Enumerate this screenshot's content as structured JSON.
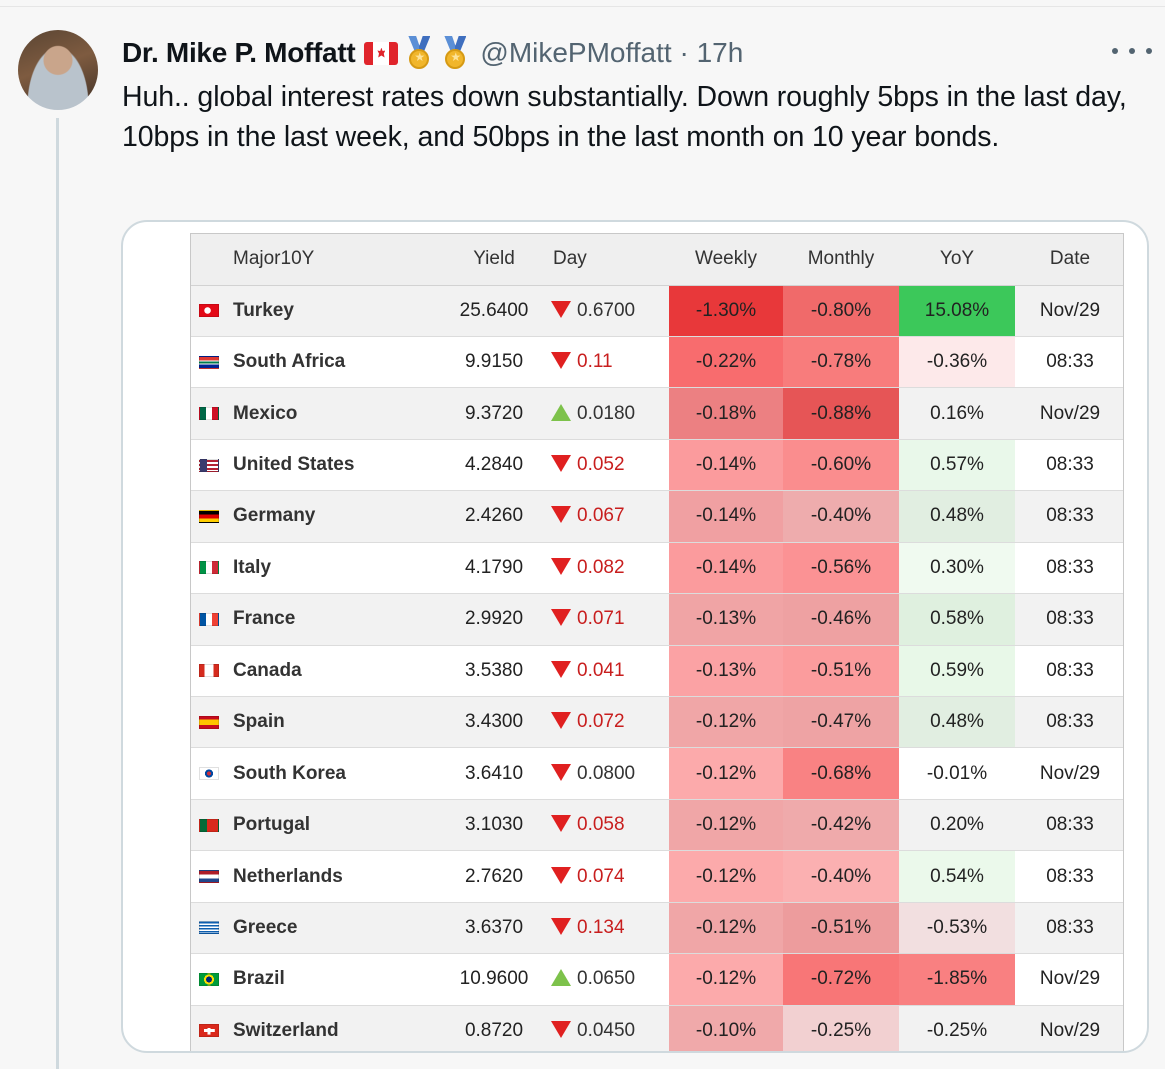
{
  "author": {
    "display_name": "Dr. Mike P. Moffatt",
    "handle": "@MikePMoffatt",
    "separator": "·",
    "time": "17h",
    "badges": [
      "canada-flag-emoji",
      "medal-emoji",
      "medal-emoji"
    ]
  },
  "tweet": {
    "text": "Huh.. global interest rates down substantially. Down roughly 5bps in the last day, 10bps in the last week, and 50bps in the last month on 10 year bonds."
  },
  "table": {
    "headers": {
      "name": "Major10Y",
      "yield": "Yield",
      "day": "Day",
      "weekly": "Weekly",
      "monthly": "Monthly",
      "yoy": "YoY",
      "date": "Date"
    },
    "rows": [
      {
        "flag": "turkey-flag-icon",
        "name": "Turkey",
        "yield": "25.6400",
        "dir": "down",
        "day": "0.6700",
        "day_red": false,
        "weekly": "-1.30%",
        "monthly": "-0.80%",
        "yoy": "15.08%",
        "date": "Nov/29",
        "w_color": "#e8383a",
        "m_color": "#f06a6a",
        "y_color": "#3cc85a"
      },
      {
        "flag": "south-africa-flag-icon",
        "name": "South Africa",
        "yield": "9.9150",
        "dir": "down",
        "day": "0.11",
        "day_red": true,
        "weekly": "-0.22%",
        "monthly": "-0.78%",
        "yoy": "-0.36%",
        "date": "08:33",
        "w_color": "#f86c6e",
        "m_color": "#f87c7c",
        "y_color": "#fde9ea"
      },
      {
        "flag": "mexico-flag-icon",
        "name": "Mexico",
        "yield": "9.3720",
        "dir": "up",
        "day": "0.0180",
        "day_red": false,
        "weekly": "-0.18%",
        "monthly": "-0.88%",
        "yoy": "0.16%",
        "date": "Nov/29",
        "w_color": "#ec8082",
        "m_color": "#e65556",
        "y_color": "#f2f2f2"
      },
      {
        "flag": "us-flag-icon",
        "name": "United States",
        "yield": "4.2840",
        "dir": "down",
        "day": "0.052",
        "day_red": true,
        "weekly": "-0.14%",
        "monthly": "-0.60%",
        "yoy": "0.57%",
        "date": "08:33",
        "w_color": "#fb9b9d",
        "m_color": "#fa8d8e",
        "y_color": "#e9f8ea"
      },
      {
        "flag": "germany-flag-icon",
        "name": "Germany",
        "yield": "2.4260",
        "dir": "down",
        "day": "0.067",
        "day_red": true,
        "weekly": "-0.14%",
        "monthly": "-0.40%",
        "yoy": "0.48%",
        "date": "08:33",
        "w_color": "#f0a0a2",
        "m_color": "#eeacad",
        "y_color": "#e1eee1"
      },
      {
        "flag": "italy-flag-icon",
        "name": "Italy",
        "yield": "4.1790",
        "dir": "down",
        "day": "0.082",
        "day_red": true,
        "weekly": "-0.14%",
        "monthly": "-0.56%",
        "yoy": "0.30%",
        "date": "08:33",
        "w_color": "#fb9b9d",
        "m_color": "#fb9294",
        "y_color": "#f0faf0"
      },
      {
        "flag": "france-flag-icon",
        "name": "France",
        "yield": "2.9920",
        "dir": "down",
        "day": "0.071",
        "day_red": true,
        "weekly": "-0.13%",
        "monthly": "-0.46%",
        "yoy": "0.58%",
        "date": "08:33",
        "w_color": "#f0a4a5",
        "m_color": "#eea1a2",
        "y_color": "#dff0df"
      },
      {
        "flag": "canada-flag-icon",
        "name": "Canada",
        "yield": "3.5380",
        "dir": "down",
        "day": "0.041",
        "day_red": true,
        "weekly": "-0.13%",
        "monthly": "-0.51%",
        "yoy": "0.59%",
        "date": "08:33",
        "w_color": "#fba2a4",
        "m_color": "#fb9c9d",
        "y_color": "#e8f8e8"
      },
      {
        "flag": "spain-flag-icon",
        "name": "Spain",
        "yield": "3.4300",
        "dir": "down",
        "day": "0.072",
        "day_red": true,
        "weekly": "-0.12%",
        "monthly": "-0.47%",
        "yoy": "0.48%",
        "date": "08:33",
        "w_color": "#f0a6a7",
        "m_color": "#eea3a4",
        "y_color": "#e1eee1"
      },
      {
        "flag": "south-korea-flag-icon",
        "name": "South Korea",
        "yield": "3.6410",
        "dir": "down",
        "day": "0.0800",
        "day_red": false,
        "weekly": "-0.12%",
        "monthly": "-0.68%",
        "yoy": "-0.01%",
        "date": "Nov/29",
        "w_color": "#fcaaab",
        "m_color": "#f98283",
        "y_color": "#ffffff"
      },
      {
        "flag": "portugal-flag-icon",
        "name": "Portugal",
        "yield": "3.1030",
        "dir": "down",
        "day": "0.058",
        "day_red": true,
        "weekly": "-0.12%",
        "monthly": "-0.42%",
        "yoy": "0.20%",
        "date": "08:33",
        "w_color": "#f0a6a7",
        "m_color": "#efaaab",
        "y_color": "#f2f2f2"
      },
      {
        "flag": "netherlands-flag-icon",
        "name": "Netherlands",
        "yield": "2.7620",
        "dir": "down",
        "day": "0.074",
        "day_red": true,
        "weekly": "-0.12%",
        "monthly": "-0.40%",
        "yoy": "0.54%",
        "date": "08:33",
        "w_color": "#fcaaab",
        "m_color": "#fbb0b1",
        "y_color": "#ebf9eb"
      },
      {
        "flag": "greece-flag-icon",
        "name": "Greece",
        "yield": "3.6370",
        "dir": "down",
        "day": "0.134",
        "day_red": true,
        "weekly": "-0.12%",
        "monthly": "-0.51%",
        "yoy": "-0.53%",
        "date": "08:33",
        "w_color": "#f0a6a7",
        "m_color": "#ed9c9d",
        "y_color": "#f2dfe0"
      },
      {
        "flag": "brazil-flag-icon",
        "name": "Brazil",
        "yield": "10.9600",
        "dir": "up",
        "day": "0.0650",
        "day_red": false,
        "weekly": "-0.12%",
        "monthly": "-0.72%",
        "yoy": "-1.85%",
        "date": "Nov/29",
        "w_color": "#fcaaab",
        "m_color": "#f87677",
        "y_color": "#f98081"
      },
      {
        "flag": "switzerland-flag-icon",
        "name": "Switzerland",
        "yield": "0.8720",
        "dir": "down",
        "day": "0.0450",
        "day_red": false,
        "weekly": "-0.10%",
        "monthly": "-0.25%",
        "yoy": "-0.25%",
        "date": "Nov/29",
        "w_color": "#f0a9aa",
        "m_color": "#f2d0d1",
        "y_color": "#f2f2f2"
      }
    ]
  }
}
